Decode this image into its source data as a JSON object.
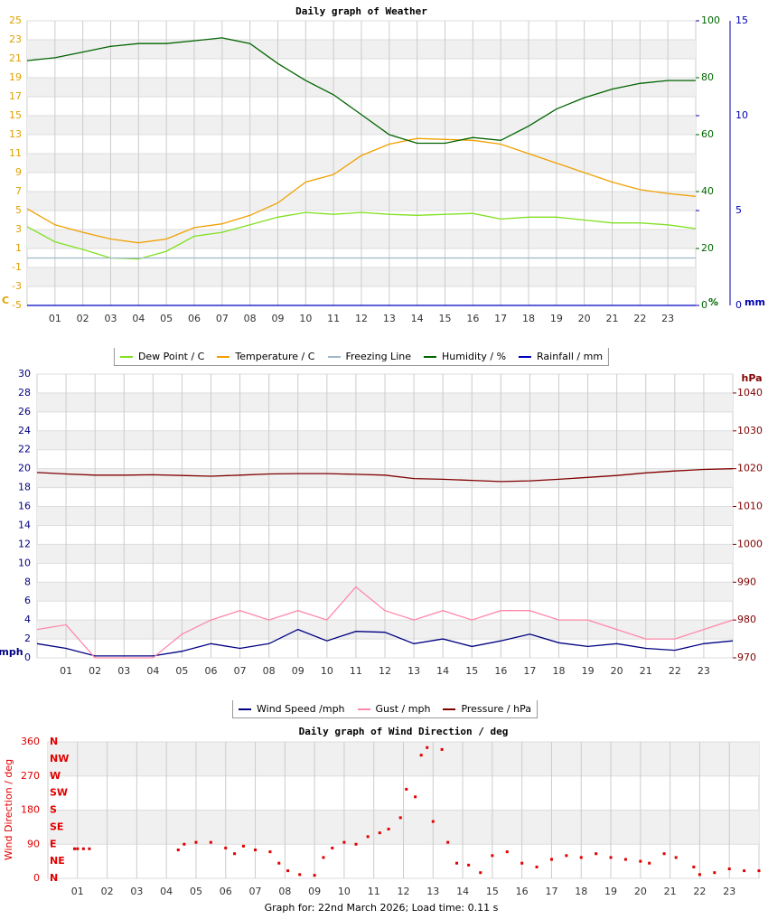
{
  "chart_data": [
    {
      "type": "line",
      "title": "Daily graph of Weather",
      "x": [
        0,
        1,
        2,
        3,
        4,
        5,
        6,
        7,
        8,
        9,
        10,
        11,
        12,
        13,
        14,
        15,
        16,
        17,
        18,
        19,
        20,
        21,
        22,
        23,
        24
      ],
      "xlim": [
        0,
        24
      ],
      "xticks": [
        {
          "value": 1,
          "label": "01"
        },
        {
          "value": 2,
          "label": "02"
        },
        {
          "value": 3,
          "label": "03"
        },
        {
          "value": 4,
          "label": "04"
        },
        {
          "value": 5,
          "label": "05"
        },
        {
          "value": 6,
          "label": "06"
        },
        {
          "value": 7,
          "label": "07"
        },
        {
          "value": 8,
          "label": "08"
        },
        {
          "value": 9,
          "label": "09"
        },
        10,
        11,
        12,
        13,
        14,
        15,
        16,
        17,
        18,
        19,
        20,
        21,
        22,
        23
      ],
      "ylim": [
        -5,
        25
      ],
      "yticks": [
        -5,
        -3,
        -1,
        1,
        3,
        5,
        7,
        9,
        11,
        13,
        15,
        17,
        19,
        21,
        23,
        25
      ],
      "ylabel": "C",
      "ycolor": "#e0a000",
      "y2lim": [
        0,
        100
      ],
      "y2ticks": [
        0,
        20,
        40,
        60,
        80,
        100
      ],
      "y2label": "%",
      "y2color": "#006400",
      "y3lim": [
        0,
        15
      ],
      "y3ticks": [
        0,
        5,
        10,
        15
      ],
      "y3label": "mm",
      "y3color": "#0000b0",
      "grid": true,
      "legend": "bottom",
      "series": [
        {
          "name": "Dew Point / C",
          "color": "#80e020",
          "axis": "y",
          "values": [
            3.3,
            1.7,
            0.9,
            0,
            -0.1,
            0.7,
            2.3,
            2.7,
            3.5,
            4.3,
            4.8,
            4.6,
            4.8,
            4.6,
            4.5,
            4.6,
            4.7,
            4.1,
            4.3,
            4.3,
            4,
            3.7,
            3.7,
            3.5,
            3.1
          ]
        },
        {
          "name": "Temperature / C",
          "color": "#f0a000",
          "axis": "y",
          "values": [
            5.2,
            3.5,
            2.7,
            2,
            1.6,
            2,
            3.2,
            3.6,
            4.5,
            5.8,
            8,
            8.8,
            10.8,
            12,
            12.6,
            12.5,
            12.4,
            12,
            11,
            10,
            9,
            8,
            7.2,
            6.8,
            6.5
          ]
        },
        {
          "name": "Freezing Line",
          "color": "#a0b8c8",
          "axis": "y",
          "values": [
            0,
            0,
            0,
            0,
            0,
            0,
            0,
            0,
            0,
            0,
            0,
            0,
            0,
            0,
            0,
            0,
            0,
            0,
            0,
            0,
            0,
            0,
            0,
            0,
            0
          ]
        },
        {
          "name": "Humidity / %",
          "color": "#006400",
          "axis": "y2",
          "values": [
            86,
            87,
            89,
            91,
            92,
            92,
            93,
            94,
            92,
            85,
            79,
            74,
            67,
            60,
            57,
            57,
            59,
            58,
            63,
            69,
            73,
            76,
            78,
            79,
            79
          ]
        },
        {
          "name": "Rainfall / mm",
          "color": "#0000c0",
          "axis": "y3",
          "values": [
            0,
            0,
            0,
            0,
            0,
            0,
            0,
            0,
            0,
            0,
            0,
            0,
            0,
            0,
            0,
            0,
            0,
            0,
            0,
            0,
            0,
            0,
            0,
            0,
            0
          ]
        }
      ]
    },
    {
      "type": "line",
      "x": [
        0,
        1,
        2,
        3,
        4,
        5,
        6,
        7,
        8,
        9,
        10,
        11,
        12,
        13,
        14,
        15,
        16,
        17,
        18,
        19,
        20,
        21,
        22,
        23,
        24
      ],
      "xlim": [
        0,
        24
      ],
      "xticks": [
        {
          "value": 1,
          "label": "01"
        },
        {
          "value": 2,
          "label": "02"
        },
        {
          "value": 3,
          "label": "03"
        },
        {
          "value": 4,
          "label": "04"
        },
        {
          "value": 5,
          "label": "05"
        },
        {
          "value": 6,
          "label": "06"
        },
        {
          "value": 7,
          "label": "07"
        },
        {
          "value": 8,
          "label": "08"
        },
        {
          "value": 9,
          "label": "09"
        },
        10,
        11,
        12,
        13,
        14,
        15,
        16,
        17,
        18,
        19,
        20,
        21,
        22,
        23
      ],
      "ylim": [
        0,
        30
      ],
      "yticks": [
        0,
        2,
        4,
        6,
        8,
        10,
        12,
        14,
        16,
        18,
        20,
        22,
        24,
        26,
        28,
        30
      ],
      "ylabel": "mph",
      "ycolor": "#000080",
      "y2lim": [
        970,
        1045
      ],
      "y2ticks": [
        970,
        980,
        990,
        1000,
        1010,
        1020,
        1030,
        1040
      ],
      "y2label": "hPa",
      "y2color": "#800000",
      "grid": true,
      "legend": "bottom",
      "series": [
        {
          "name": "Wind Speed /mph",
          "color": "#000080",
          "axis": "y",
          "values": [
            1.5,
            1,
            0.2,
            0.2,
            0.2,
            0.7,
            1.5,
            1,
            1.5,
            3,
            1.8,
            2.8,
            2.7,
            1.5,
            2,
            1.2,
            1.8,
            2.5,
            1.6,
            1.2,
            1.5,
            1,
            0.8,
            1.5,
            1.8
          ]
        },
        {
          "name": "Gust / mph",
          "color": "#ff88aa",
          "axis": "y",
          "values": [
            3,
            3.5,
            0,
            0,
            0,
            2.5,
            4,
            5,
            4,
            5,
            4,
            7.5,
            5,
            4,
            5,
            4,
            5,
            5,
            4,
            4,
            3,
            2,
            2,
            3,
            4
          ]
        },
        {
          "name": "Pressure / hPa",
          "color": "#800000",
          "axis": "y2",
          "values": [
            1019,
            1018.6,
            1018.3,
            1018.3,
            1018.4,
            1018.2,
            1018,
            1018.3,
            1018.6,
            1018.7,
            1018.7,
            1018.5,
            1018.3,
            1017.4,
            1017.2,
            1016.9,
            1016.6,
            1016.8,
            1017.2,
            1017.7,
            1018.2,
            1018.9,
            1019.4,
            1019.8,
            1020
          ]
        }
      ]
    },
    {
      "type": "scatter",
      "title": "Daily graph of Wind Direction / deg",
      "ylabel": "Wind Direction / deg",
      "ycolor": "#e00000",
      "x": [
        0.9,
        1.0,
        1.2,
        1.4,
        4.4,
        4.6,
        5,
        5.5,
        6,
        6.3,
        6.6,
        7,
        7.5,
        7.8,
        8.1,
        8.5,
        9,
        9.3,
        9.6,
        10,
        10.4,
        10.8,
        11.2,
        11.5,
        11.9,
        12.1,
        12.4,
        12.6,
        12.8,
        13,
        13.3,
        13.5,
        13.8,
        14.2,
        14.6,
        15,
        15.5,
        16,
        16.5,
        17,
        17.5,
        18,
        18.5,
        19,
        19.5,
        20,
        20.3,
        20.8,
        21.2,
        21.8,
        22,
        22.5,
        23,
        23.5,
        24
      ],
      "values": [
        78,
        78,
        78,
        78,
        75,
        90,
        95,
        95,
        80,
        65,
        85,
        75,
        70,
        40,
        20,
        10,
        8,
        55,
        80,
        95,
        90,
        110,
        120,
        130,
        160,
        235,
        215,
        325,
        345,
        150,
        340,
        95,
        40,
        35,
        15,
        60,
        70,
        40,
        30,
        50,
        60,
        55,
        65,
        55,
        50,
        45,
        40,
        65,
        55,
        30,
        10,
        15,
        25,
        20,
        20
      ],
      "color": "#e00000",
      "xlim": [
        0,
        24
      ],
      "xticks": [
        {
          "value": 1,
          "label": "01"
        },
        {
          "value": 2,
          "label": "02"
        },
        {
          "value": 3,
          "label": "03"
        },
        {
          "value": 4,
          "label": "04"
        },
        {
          "value": 5,
          "label": "05"
        },
        {
          "value": 6,
          "label": "06"
        },
        {
          "value": 7,
          "label": "07"
        },
        {
          "value": 8,
          "label": "08"
        },
        {
          "value": 9,
          "label": "09"
        },
        10,
        11,
        12,
        13,
        14,
        15,
        16,
        17,
        18,
        19,
        20,
        21,
        22,
        23
      ],
      "ylim": [
        0,
        360
      ],
      "yticks": [
        0,
        90,
        180,
        270,
        360
      ],
      "direction_ticks": [
        {
          "value": 0,
          "label": "N"
        },
        {
          "value": 45,
          "label": "NE"
        },
        {
          "value": 90,
          "label": "E"
        },
        {
          "value": 135,
          "label": "SE"
        },
        {
          "value": 180,
          "label": "S"
        },
        {
          "value": 225,
          "label": "SW"
        },
        {
          "value": 270,
          "label": "W"
        },
        {
          "value": 315,
          "label": "NW"
        },
        {
          "value": 360,
          "label": "N"
        }
      ],
      "grid": true
    }
  ],
  "footer": "Graph for: 22nd March 2026; Load time: 0.11 s"
}
